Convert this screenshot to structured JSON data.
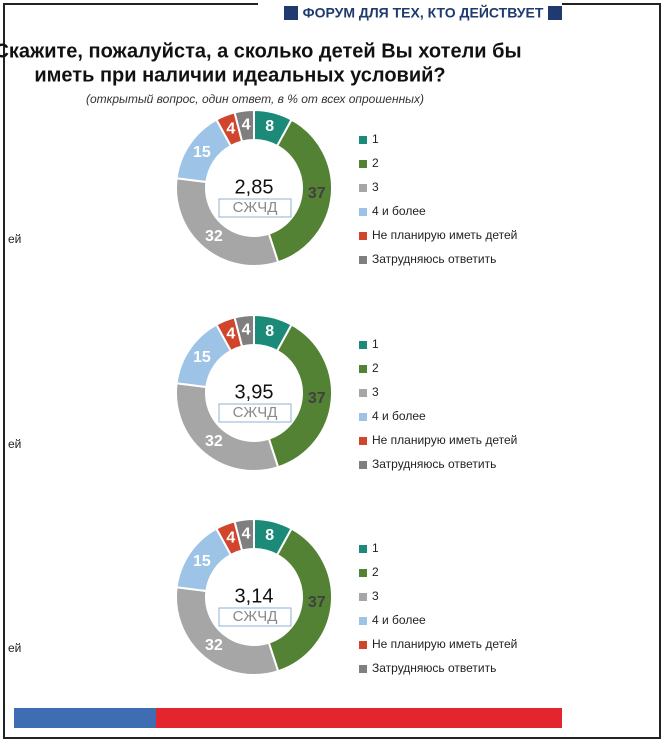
{
  "header": "ФОРУМ ДЛЯ ТЕХ, КТО ДЕЙСТВУЕТ",
  "title": [
    "Скажите, пожалуйста, а сколько детей Вы хотели бы",
    "иметь при наличии идеальных условий?"
  ],
  "subtitle": "(открытый вопрос, один ответ, в % от всех опрошенных)",
  "chart_data": [
    {
      "type": "donut",
      "categories": [
        "1",
        "2",
        "3",
        "4 и более",
        "Не планирую иметь детей",
        "Затрудняюсь ответить"
      ],
      "values": [
        8,
        37,
        32,
        15,
        4,
        4
      ],
      "colors": [
        "#1b8a78",
        "#548235",
        "#a6a6a6",
        "#9dc3e6",
        "#d0452b",
        "#7f7f7f"
      ],
      "center_value": "2,85",
      "center_label": "СЖЧД",
      "cropped_text": "ей"
    },
    {
      "type": "donut",
      "categories": [
        "1",
        "2",
        "3",
        "4 и более",
        "Не планирую иметь детей",
        "Затрудняюсь ответить"
      ],
      "values": [
        8,
        37,
        32,
        15,
        4,
        4
      ],
      "colors": [
        "#1b8a78",
        "#548235",
        "#a6a6a6",
        "#9dc3e6",
        "#d0452b",
        "#7f7f7f"
      ],
      "center_value": "3,95",
      "center_label": "СЖЧД",
      "cropped_text": "ей"
    },
    {
      "type": "donut",
      "categories": [
        "1",
        "2",
        "3",
        "4 и более",
        "Не планирую иметь детей",
        "Затрудняюсь ответить"
      ],
      "values": [
        8,
        37,
        32,
        15,
        4,
        4
      ],
      "colors": [
        "#1b8a78",
        "#548235",
        "#a6a6a6",
        "#9dc3e6",
        "#d0452b",
        "#7f7f7f"
      ],
      "center_value": "3,14",
      "center_label": "СЖЧД",
      "cropped_text": "ей"
    }
  ]
}
